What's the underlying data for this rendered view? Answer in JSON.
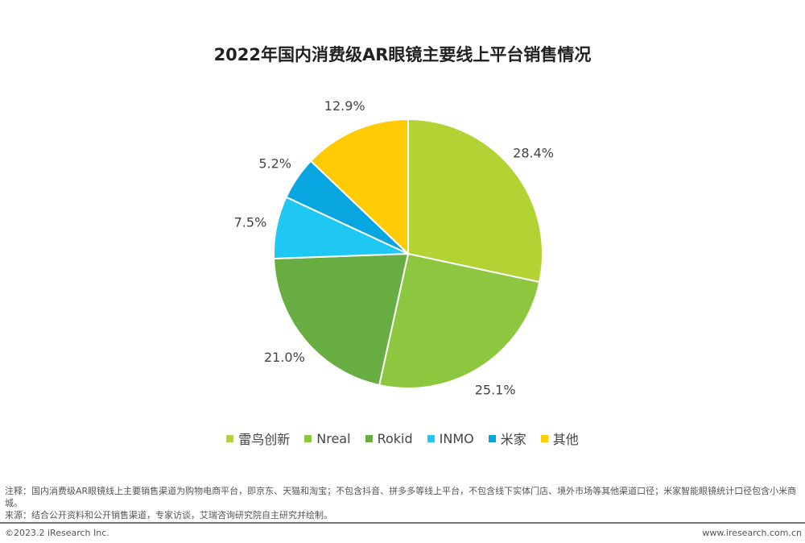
{
  "chart_data": {
    "type": "pie",
    "title": "2022年国内消费级AR眼镜主要线上平台销售情况",
    "categories": [
      "雷鸟创新",
      "Nreal",
      "Rokid",
      "INMO",
      "米家",
      "其他"
    ],
    "values": [
      28.4,
      25.1,
      21.0,
      7.5,
      5.2,
      12.9
    ],
    "labels": [
      "28.4%",
      "25.1%",
      "21.0%",
      "7.5%",
      "5.2%",
      "12.9%"
    ],
    "colors": [
      "#b3d335",
      "#8dc63f",
      "#67ad42",
      "#1fc8f2",
      "#08a6e0",
      "#ffcb05"
    ],
    "start": "top",
    "direction": "clockwise",
    "legend_position": "bottom"
  },
  "footer": {
    "note": "注释：国内消费级AR眼镜线上主要销售渠道为购物电商平台，即京东、天猫和淘宝；不包含抖音、拼多多等线上平台，不包含线下实体门店、境外市场等其他渠道口径；米家智能眼镜统计口径包含小米商城。",
    "source": "来源：结合公开资料和公开销售渠道，专家访谈，艾瑞咨询研究院自主研究并绘制。",
    "copyright": "©2023.2 iResearch Inc.",
    "website": "www.iresearch.com.cn"
  }
}
